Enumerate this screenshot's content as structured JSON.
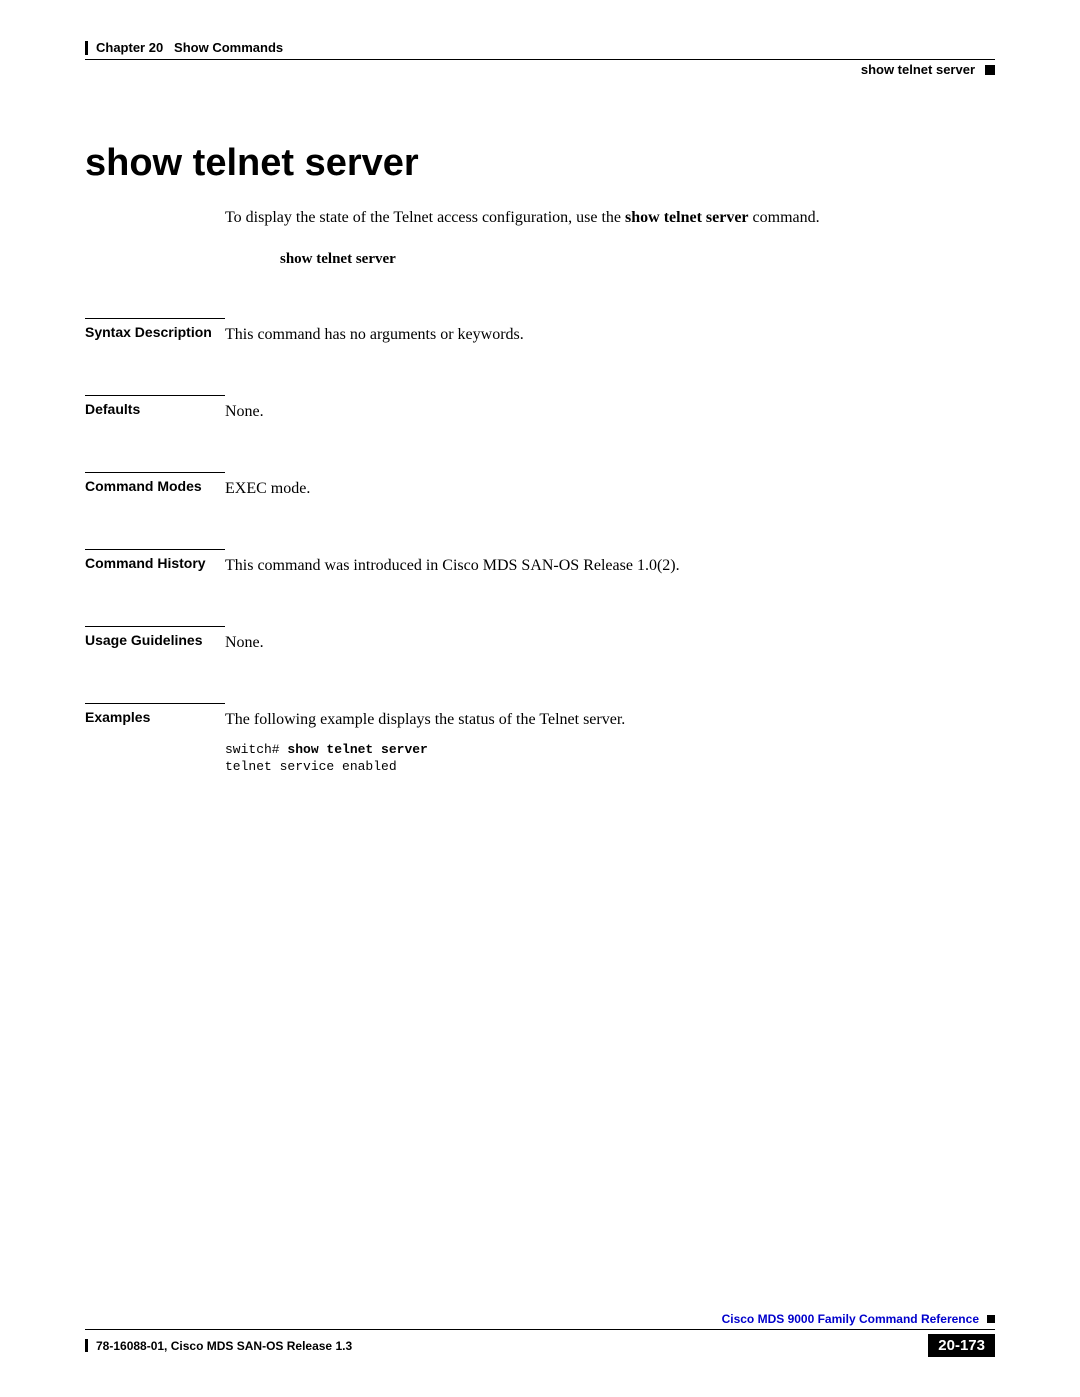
{
  "header": {
    "chapter": "Chapter 20",
    "chapter_title": "Show Commands",
    "section": "show telnet server"
  },
  "title": "show telnet server",
  "intro_prefix": "To display the state of the Telnet access configuration, use the ",
  "intro_command": "show telnet server",
  "intro_suffix": " command.",
  "command_syntax": "show telnet server",
  "sections": {
    "syntax_description": {
      "label": "Syntax Description",
      "content": "This command has no arguments or keywords."
    },
    "defaults": {
      "label": "Defaults",
      "content": "None."
    },
    "command_modes": {
      "label": "Command Modes",
      "content": "EXEC mode."
    },
    "command_history": {
      "label": "Command History",
      "content": "This command was introduced in Cisco MDS SAN-OS Release 1.0(2)."
    },
    "usage_guidelines": {
      "label": "Usage Guidelines",
      "content": "None."
    },
    "examples": {
      "label": "Examples",
      "content": "The following example displays the status of the Telnet server.",
      "code_prompt": "switch# ",
      "code_command": "show telnet server",
      "code_output": "telnet service enabled"
    }
  },
  "footer": {
    "reference": "Cisco MDS 9000 Family Command Reference",
    "release": "78-16088-01, Cisco MDS SAN-OS Release 1.3",
    "page_number": "20-173"
  }
}
